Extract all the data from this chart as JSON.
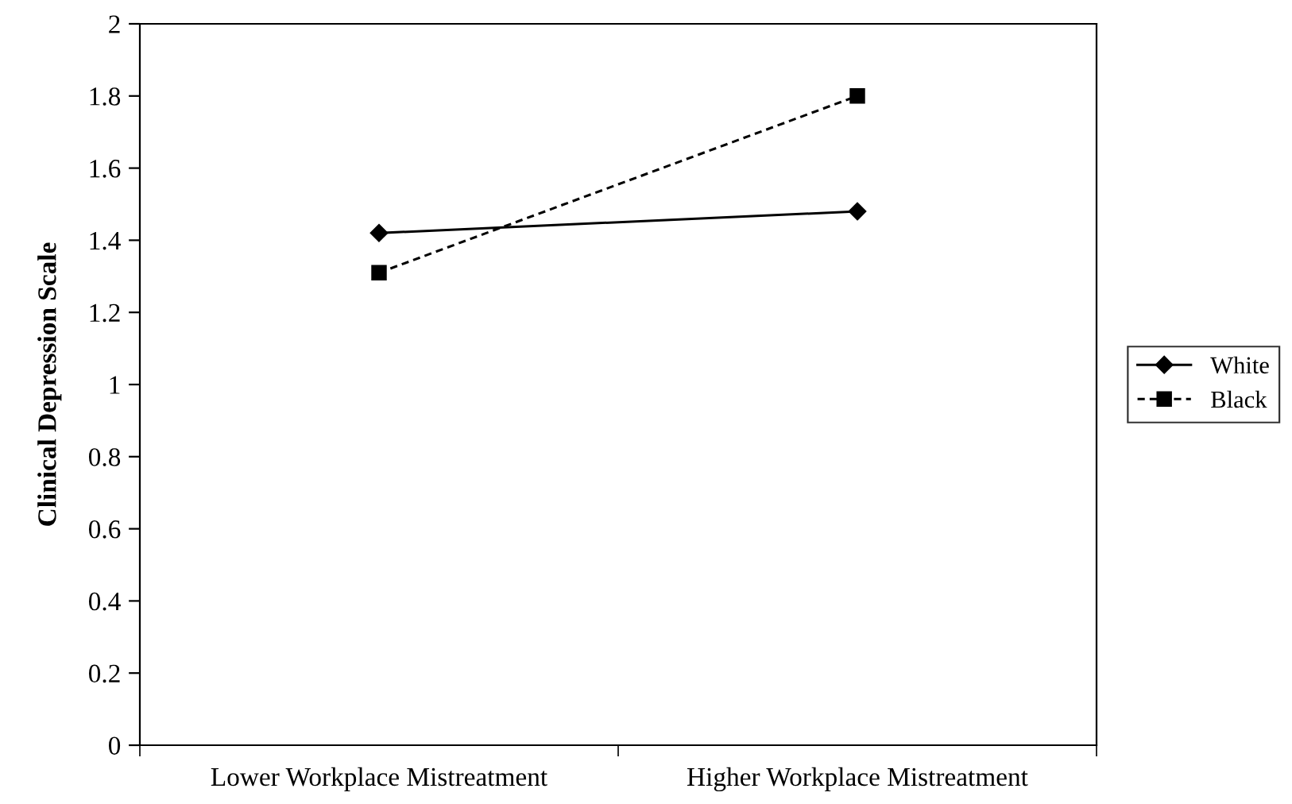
{
  "chart_data": {
    "type": "line",
    "ylabel": "Clinical Depression Scale",
    "categories": [
      "Lower Workplace Mistreatment",
      "Higher Workplace Mistreatment"
    ],
    "series": [
      {
        "name": "White",
        "color": "#000000",
        "values": [
          1.42,
          1.48
        ],
        "marker": "diamond",
        "line_style": "solid"
      },
      {
        "name": "Black",
        "color": "#000000",
        "values": [
          1.31,
          1.8
        ],
        "marker": "square",
        "line_style": "dashed"
      }
    ],
    "ylim": [
      0,
      2
    ],
    "yticks": [
      0,
      0.2,
      0.4,
      0.6,
      0.8,
      1,
      1.2,
      1.4,
      1.6,
      1.8,
      2
    ],
    "grid": false,
    "legend": "right"
  }
}
